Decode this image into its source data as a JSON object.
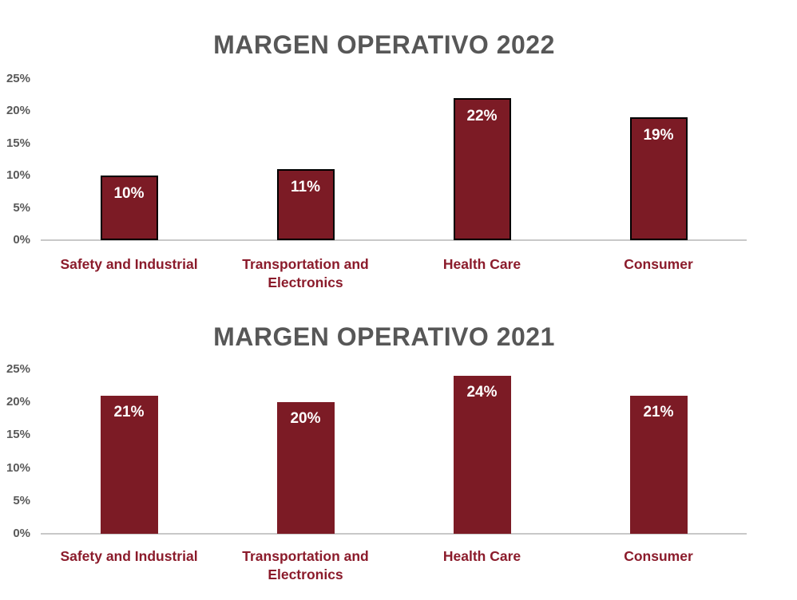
{
  "page": {
    "background": "#FFFFFF"
  },
  "colors": {
    "bar_fill": "#7C1B25",
    "bar_border": "#000000",
    "category_label": "#8B1B2B",
    "title": "#575757",
    "tick_label": "#595959",
    "data_label": "#FFFFFF",
    "axis_line": "#C8C8C8"
  },
  "chart_data": [
    {
      "type": "bar",
      "title": "MARGEN OPERATIVO 2022",
      "categories": [
        "Safety and Industrial",
        "Transportation and Electronics",
        "Health Care",
        "Consumer"
      ],
      "values": [
        10,
        11,
        22,
        19
      ],
      "data_labels": [
        "10%",
        "11%",
        "22%",
        "19%"
      ],
      "yticks": [
        "25%",
        "20%",
        "15%",
        "10%",
        "5%",
        "0%"
      ],
      "ylim": [
        0,
        25
      ],
      "xlabel": "",
      "ylabel": "",
      "grid": false,
      "legend": "none",
      "bar_outline": true,
      "data_label_position": "inside-top"
    },
    {
      "type": "bar",
      "title": "MARGEN OPERATIVO 2021",
      "categories": [
        "Safety and Industrial",
        "Transportation and Electronics",
        "Health Care",
        "Consumer"
      ],
      "values": [
        21,
        20,
        24,
        21
      ],
      "data_labels": [
        "21%",
        "20%",
        "24%",
        "21%"
      ],
      "yticks": [
        "25%",
        "20%",
        "15%",
        "10%",
        "5%",
        "0%"
      ],
      "ylim": [
        0,
        25
      ],
      "xlabel": "",
      "ylabel": "",
      "grid": false,
      "legend": "none",
      "bar_outline": false,
      "data_label_position": "inside-top"
    }
  ]
}
